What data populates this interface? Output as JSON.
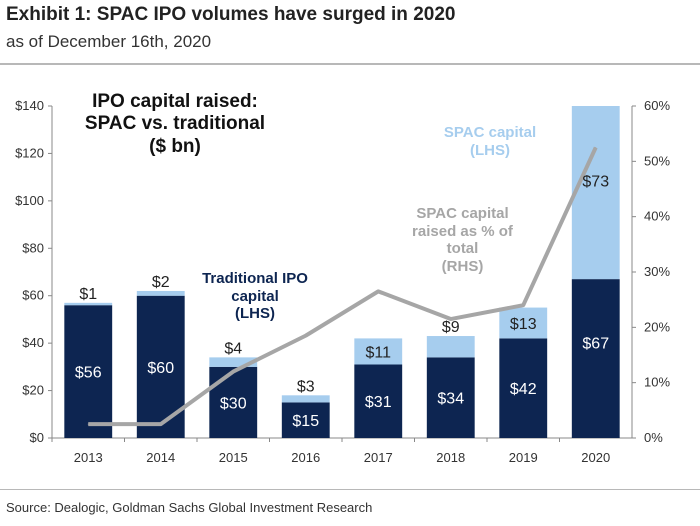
{
  "header": {
    "title": "Exhibit 1: SPAC IPO volumes have surged in 2020",
    "subtitle": "as of December 16th, 2020"
  },
  "source": "Source: Dealogic, Goldman Sachs Global Investment Research",
  "annotations": {
    "chart_title": "IPO capital raised:\nSPAC vs. traditional\n($ bn)",
    "spac": "SPAC capital\n(LHS)",
    "pct": "SPAC capital\nraised as % of\ntotal\n(RHS)",
    "traditional": "Traditional IPO\ncapital\n(LHS)"
  },
  "colors": {
    "traditional": "#0d2551",
    "spac": "#a6cdee",
    "pct_line": "#a6a6a6",
    "axis_text": "#333333"
  },
  "chart_data": {
    "type": "bar",
    "stacked": true,
    "title": "IPO capital raised: SPAC vs. traditional ($ bn)",
    "categories": [
      "2013",
      "2014",
      "2015",
      "2016",
      "2017",
      "2018",
      "2019",
      "2020"
    ],
    "series": [
      {
        "name": "Traditional IPO capital (LHS)",
        "axis": "left",
        "values": [
          56,
          60,
          30,
          15,
          31,
          34,
          42,
          67
        ],
        "labels": [
          "$56",
          "$60",
          "$30",
          "$15",
          "$31",
          "$34",
          "$42",
          "$67"
        ]
      },
      {
        "name": "SPAC capital (LHS)",
        "axis": "left",
        "values": [
          1,
          2,
          4,
          3,
          11,
          9,
          13,
          73
        ],
        "labels": [
          "$1",
          "$2",
          "$4",
          "$3",
          "$11",
          "$9",
          "$13",
          "$73"
        ]
      },
      {
        "name": "SPAC capital raised as % of total (RHS)",
        "axis": "right",
        "type": "line",
        "values": [
          2.5,
          2.5,
          12,
          18.5,
          26.5,
          21.5,
          24,
          52.5
        ]
      }
    ],
    "y_left": {
      "ylim": [
        0,
        140
      ],
      "ticks": [
        0,
        20,
        40,
        60,
        80,
        100,
        120,
        140
      ],
      "tick_labels": [
        "$0",
        "$20",
        "$40",
        "$60",
        "$80",
        "$100",
        "$120",
        "$140"
      ]
    },
    "y_right": {
      "ylim": [
        0,
        60
      ],
      "ticks": [
        0,
        10,
        20,
        30,
        40,
        50,
        60
      ],
      "tick_labels": [
        "0%",
        "10%",
        "20%",
        "30%",
        "40%",
        "50%",
        "60%"
      ]
    },
    "grid": false,
    "legend": "inline annotations"
  }
}
